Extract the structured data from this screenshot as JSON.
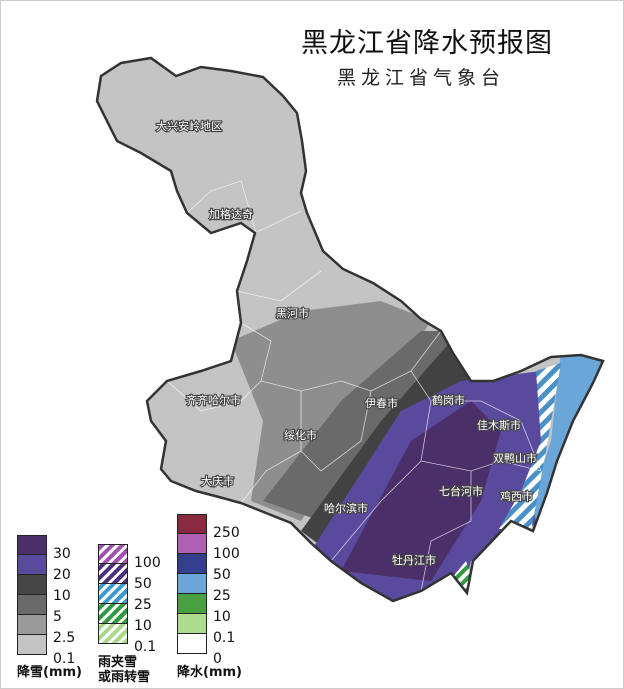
{
  "title": "黑龙江省降水预报图",
  "subtitle": "黑龙江省气象台",
  "cities": [
    {
      "name": "大兴安岭地区"
    },
    {
      "name": "加格达奇"
    },
    {
      "name": "黑河市"
    },
    {
      "name": "齐齐哈尔市"
    },
    {
      "name": "绥化市"
    },
    {
      "name": "伊春市"
    },
    {
      "name": "鹤岗市"
    },
    {
      "name": "佳木斯市"
    },
    {
      "name": "双鸭山市"
    },
    {
      "name": "七台河市"
    },
    {
      "name": "鸡西市"
    },
    {
      "name": "哈尔滨市"
    },
    {
      "name": "大庆市"
    },
    {
      "name": "牡丹江市"
    }
  ],
  "legends": {
    "snow": {
      "title": "降雪(mm)",
      "colors": [
        "#4a2f68",
        "#5a4a9e",
        "#464646",
        "#6a6a6a",
        "#9a9a9a",
        "#c4c4c4"
      ],
      "values": [
        "30",
        "20",
        "10",
        "5",
        "2.5",
        "0.1"
      ]
    },
    "mixed": {
      "title_line1": "雨夹雪",
      "title_line2": "或雨转雪",
      "colors": [
        "#a050b0",
        "#4a2f80",
        "#3a9ad0",
        "#2e9a40",
        "#a8d888"
      ],
      "values": [
        "100",
        "50",
        "25",
        "10",
        "0.1"
      ]
    },
    "rain": {
      "title": "降水(mm)",
      "colors": [
        "#8a2a40",
        "#b060b0",
        "#34408e",
        "#6aa6d8",
        "#48a040",
        "#b0dc90",
        "#ffffff"
      ],
      "values": [
        "250",
        "100",
        "50",
        "25",
        "10",
        "0.1",
        "0"
      ]
    }
  }
}
